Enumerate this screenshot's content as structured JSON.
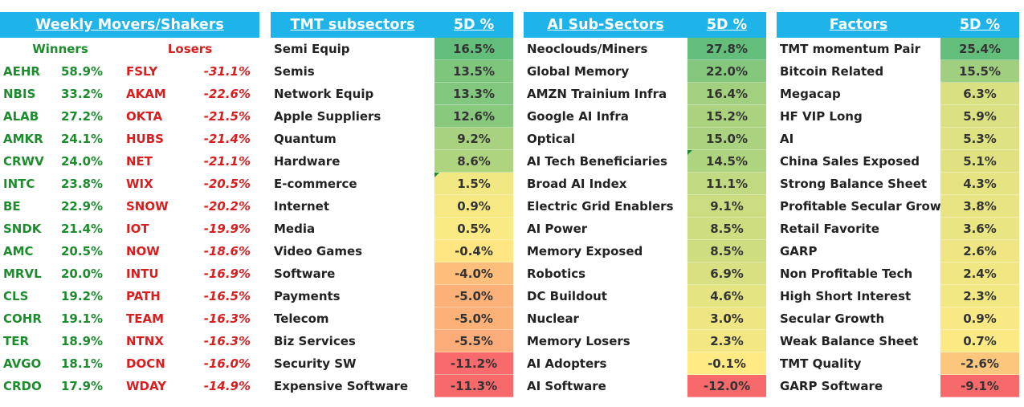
{
  "movers": {
    "title": "Weekly Movers/Shakers",
    "winners_label": "Winners",
    "losers_label": "Losers",
    "rows": [
      {
        "w_ticker": "AEHR",
        "w_pct": "58.9%",
        "l_ticker": "FSLY",
        "l_pct": "-31.1%"
      },
      {
        "w_ticker": "NBIS",
        "w_pct": "33.2%",
        "l_ticker": "AKAM",
        "l_pct": "-22.6%"
      },
      {
        "w_ticker": "ALAB",
        "w_pct": "27.2%",
        "l_ticker": "OKTA",
        "l_pct": "-21.5%"
      },
      {
        "w_ticker": "AMKR",
        "w_pct": "24.1%",
        "l_ticker": "HUBS",
        "l_pct": "-21.4%"
      },
      {
        "w_ticker": "CRWV",
        "w_pct": "24.0%",
        "l_ticker": "NET",
        "l_pct": "-21.1%"
      },
      {
        "w_ticker": "INTC",
        "w_pct": "23.8%",
        "l_ticker": "WIX",
        "l_pct": "-20.5%"
      },
      {
        "w_ticker": "BE",
        "w_pct": "22.9%",
        "l_ticker": "SNOW",
        "l_pct": "-20.2%"
      },
      {
        "w_ticker": "SNDK",
        "w_pct": "21.4%",
        "l_ticker": "IOT",
        "l_pct": "-19.9%"
      },
      {
        "w_ticker": "AMC",
        "w_pct": "20.5%",
        "l_ticker": "NOW",
        "l_pct": "-18.6%"
      },
      {
        "w_ticker": "MRVL",
        "w_pct": "20.0%",
        "l_ticker": "INTU",
        "l_pct": "-16.9%"
      },
      {
        "w_ticker": "CLS",
        "w_pct": "19.2%",
        "l_ticker": "PATH",
        "l_pct": "-16.5%"
      },
      {
        "w_ticker": "COHR",
        "w_pct": "19.1%",
        "l_ticker": "TEAM",
        "l_pct": "-16.3%"
      },
      {
        "w_ticker": "TER",
        "w_pct": "18.9%",
        "l_ticker": "NTNX",
        "l_pct": "-16.3%"
      },
      {
        "w_ticker": "AVGO",
        "w_pct": "18.1%",
        "l_ticker": "DOCN",
        "l_pct": "-16.0%"
      },
      {
        "w_ticker": "CRDO",
        "w_pct": "17.9%",
        "l_ticker": "WDAY",
        "l_pct": "-14.9%"
      }
    ]
  },
  "tmt": {
    "title": "TMT subsectors",
    "col_label": "5D %",
    "rows": [
      {
        "name": "Semi Equip",
        "pct": "16.5%",
        "v": 16.5
      },
      {
        "name": "Semis",
        "pct": "13.5%",
        "v": 13.5
      },
      {
        "name": "Network Equip",
        "pct": "13.3%",
        "v": 13.3
      },
      {
        "name": "Apple Suppliers",
        "pct": "12.6%",
        "v": 12.6
      },
      {
        "name": "Quantum",
        "pct": "9.2%",
        "v": 9.2
      },
      {
        "name": "Hardware",
        "pct": "8.6%",
        "v": 8.6
      },
      {
        "name": "E-commerce",
        "pct": "1.5%",
        "v": 1.5
      },
      {
        "name": "Internet",
        "pct": "0.9%",
        "v": 0.9
      },
      {
        "name": "Media",
        "pct": "0.5%",
        "v": 0.5
      },
      {
        "name": "Video Games",
        "pct": "-0.4%",
        "v": -0.4
      },
      {
        "name": "Software",
        "pct": "-4.0%",
        "v": -4.0
      },
      {
        "name": "Payments",
        "pct": "-5.0%",
        "v": -5.0
      },
      {
        "name": "Telecom",
        "pct": "-5.0%",
        "v": -5.0
      },
      {
        "name": "Biz Services",
        "pct": "-5.5%",
        "v": -5.5
      },
      {
        "name": "Security SW",
        "pct": "-11.2%",
        "v": -11.2
      },
      {
        "name": "Expensive Software",
        "pct": "-11.3%",
        "v": -11.3
      }
    ]
  },
  "ai": {
    "title": "AI Sub-Sectors",
    "col_label": "5D %",
    "rows": [
      {
        "name": "Neoclouds/Miners",
        "pct": "27.8%",
        "v": 27.8
      },
      {
        "name": "Global Memory",
        "pct": "22.0%",
        "v": 22.0
      },
      {
        "name": "AMZN Trainium Infra",
        "pct": "16.4%",
        "v": 16.4
      },
      {
        "name": "Google AI Infra",
        "pct": "15.2%",
        "v": 15.2
      },
      {
        "name": "Optical",
        "pct": "15.0%",
        "v": 15.0
      },
      {
        "name": "AI Tech Beneficiaries",
        "pct": "14.5%",
        "v": 14.5
      },
      {
        "name": "Broad AI Index",
        "pct": "11.1%",
        "v": 11.1
      },
      {
        "name": "Electric Grid Enablers",
        "pct": "9.1%",
        "v": 9.1
      },
      {
        "name": "AI Power",
        "pct": "8.5%",
        "v": 8.5
      },
      {
        "name": "Memory Exposed",
        "pct": "8.5%",
        "v": 8.5
      },
      {
        "name": "Robotics",
        "pct": "6.9%",
        "v": 6.9
      },
      {
        "name": "DC Buildout",
        "pct": "4.6%",
        "v": 4.6
      },
      {
        "name": "Nuclear",
        "pct": "3.0%",
        "v": 3.0
      },
      {
        "name": "Memory Losers",
        "pct": "2.3%",
        "v": 2.3
      },
      {
        "name": "AI Adopters",
        "pct": "-0.1%",
        "v": -0.1
      },
      {
        "name": "AI Software",
        "pct": "-12.0%",
        "v": -12.0
      }
    ]
  },
  "factors": {
    "title": "Factors",
    "col_label": "5D %",
    "rows": [
      {
        "name": "TMT momentum Pair",
        "pct": "25.4%",
        "v": 25.4
      },
      {
        "name": "Bitcoin Related",
        "pct": "15.5%",
        "v": 15.5
      },
      {
        "name": "Megacap",
        "pct": "6.3%",
        "v": 6.3
      },
      {
        "name": "HF VIP Long",
        "pct": "5.9%",
        "v": 5.9
      },
      {
        "name": "AI",
        "pct": "5.3%",
        "v": 5.3
      },
      {
        "name": "China Sales Exposed",
        "pct": "5.1%",
        "v": 5.1
      },
      {
        "name": "Strong Balance Sheet",
        "pct": "4.3%",
        "v": 4.3
      },
      {
        "name": "Profitable Secular Growt",
        "pct": "3.8%",
        "v": 3.8
      },
      {
        "name": "Retail Favorite",
        "pct": "3.6%",
        "v": 3.6
      },
      {
        "name": "GARP",
        "pct": "2.6%",
        "v": 2.6
      },
      {
        "name": "Non Profitable Tech",
        "pct": "2.4%",
        "v": 2.4
      },
      {
        "name": "High Short Interest",
        "pct": "2.3%",
        "v": 2.3
      },
      {
        "name": "Secular Growth",
        "pct": "0.9%",
        "v": 0.9
      },
      {
        "name": "Weak Balance Sheet",
        "pct": "0.7%",
        "v": 0.7
      },
      {
        "name": "TMT Quality",
        "pct": "-2.6%",
        "v": -2.6
      },
      {
        "name": "GARP Software",
        "pct": "-9.1%",
        "v": -9.1
      }
    ]
  },
  "colors": {
    "header_bg": "#1EB4EA",
    "winner_text": "#1E8C2E",
    "loser_text": "#D81E1E",
    "scale_high": "#63BE7B",
    "scale_mid": "#FFEB84",
    "scale_low": "#F8696B"
  }
}
